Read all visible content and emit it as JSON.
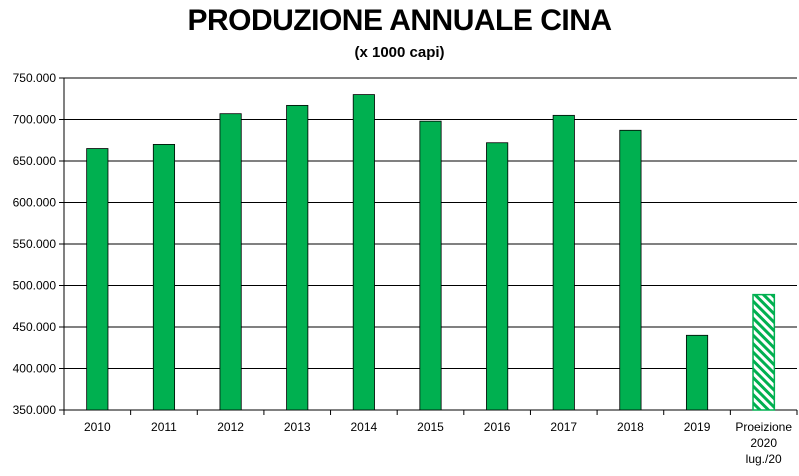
{
  "chart_data": {
    "type": "bar",
    "title": "PRODUZIONE ANNUALE CINA",
    "subtitle": "(x 1000 capi)",
    "categories": [
      "2010",
      "2011",
      "2012",
      "2013",
      "2014",
      "2015",
      "2016",
      "2017",
      "2018",
      "2019",
      "Proeizione 2020 lug./20"
    ],
    "category_lines": [
      [
        "2010"
      ],
      [
        "2011"
      ],
      [
        "2012"
      ],
      [
        "2013"
      ],
      [
        "2014"
      ],
      [
        "2015"
      ],
      [
        "2016"
      ],
      [
        "2017"
      ],
      [
        "2018"
      ],
      [
        "2019"
      ],
      [
        "Proeizione",
        "2020",
        "lug./20"
      ]
    ],
    "values": [
      665000,
      670000,
      707000,
      717000,
      730000,
      698000,
      672000,
      705000,
      687000,
      440000,
      489000
    ],
    "projection_index": 10,
    "ylim": [
      350000,
      750000
    ],
    "yticks": [
      350000,
      400000,
      450000,
      500000,
      550000,
      600000,
      650000,
      700000,
      750000
    ],
    "ytick_labels": [
      "350.000",
      "400.000",
      "450.000",
      "500.000",
      "550.000",
      "600.000",
      "650.000",
      "700.000",
      "750.000"
    ],
    "grid": true,
    "xlabel": "",
    "ylabel": "",
    "colors": {
      "bar": "#00b050",
      "projection_hatch": "#00b050",
      "grid": "#000000"
    }
  }
}
